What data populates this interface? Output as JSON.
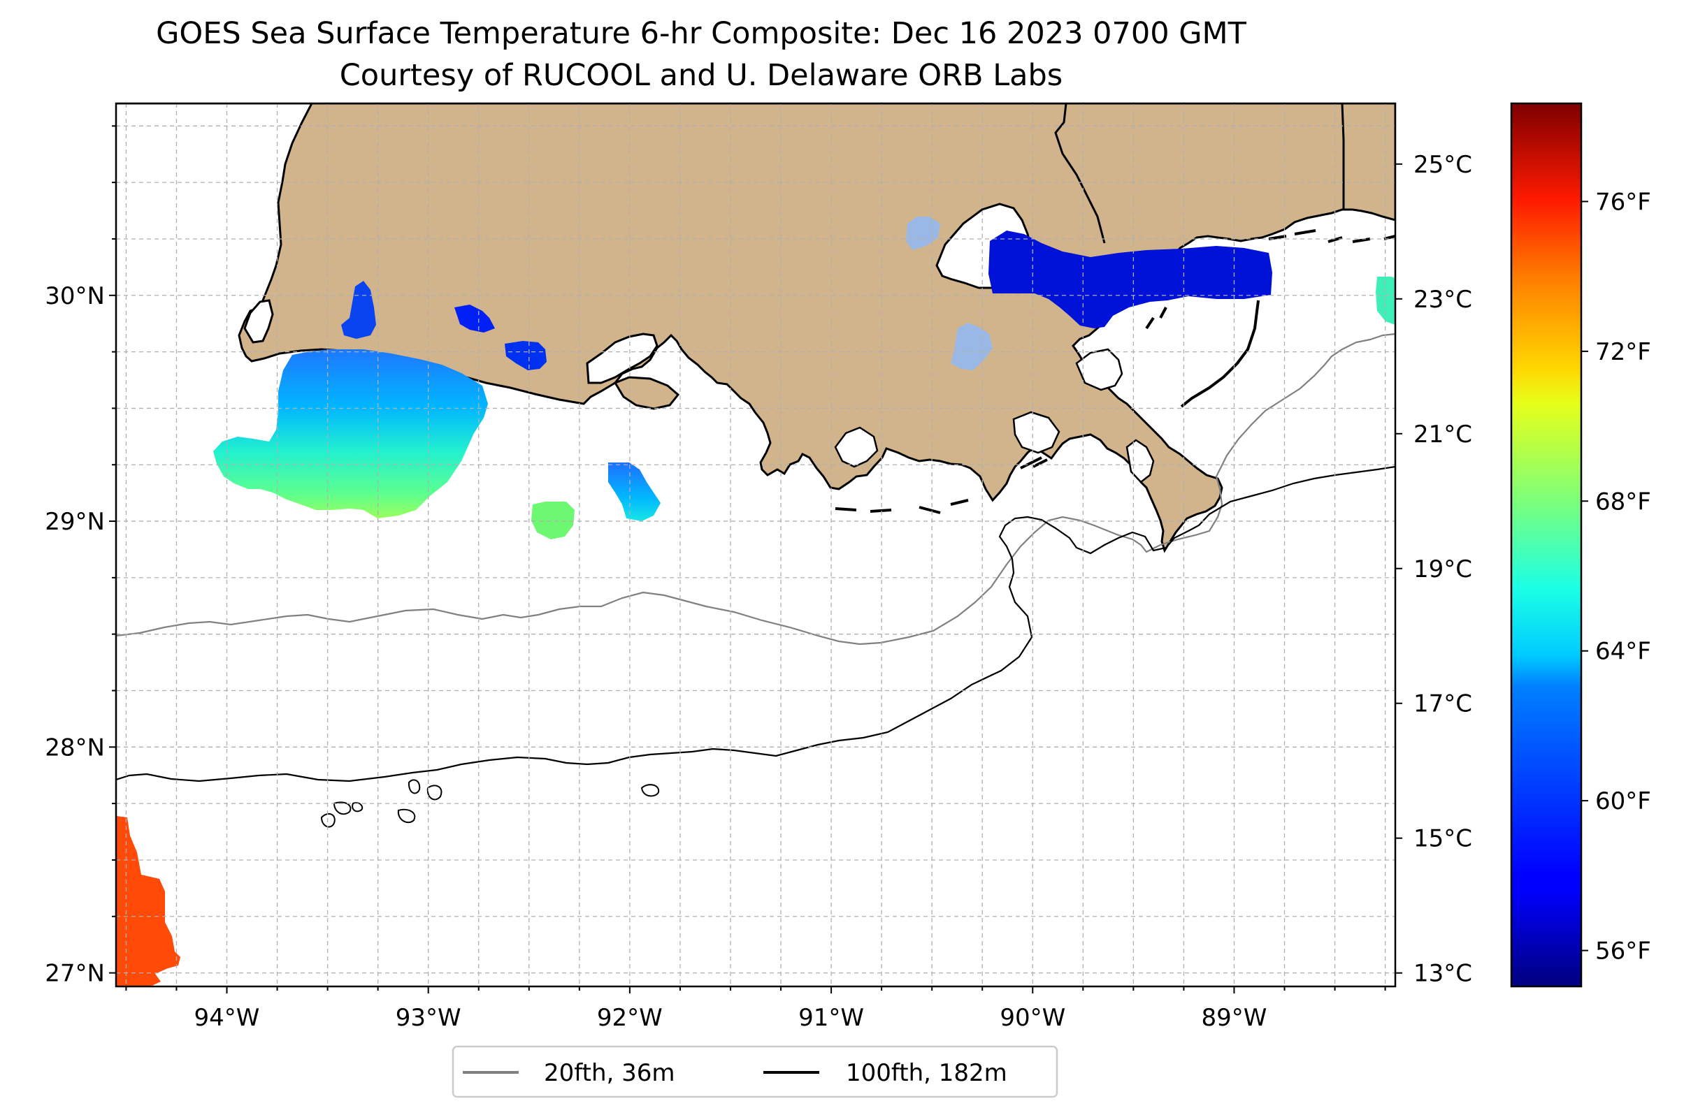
{
  "title": "GOES Sea Surface Temperature 6-hr Composite: Dec 16 2023 0700 GMT",
  "subtitle": "Courtesy of RUCOOL and U. Delaware ORB Labs",
  "map": {
    "lon_range": [
      -94.55,
      -88.2
    ],
    "lat_range": [
      26.94,
      30.85
    ],
    "lon_ticks": [
      {
        "value": -94,
        "label": "94°W"
      },
      {
        "value": -93,
        "label": "93°W"
      },
      {
        "value": -92,
        "label": "92°W"
      },
      {
        "value": -91,
        "label": "91°W"
      },
      {
        "value": -90,
        "label": "90°W"
      },
      {
        "value": -89,
        "label": "89°W"
      }
    ],
    "lat_ticks": [
      {
        "value": 27,
        "label": "27°N"
      },
      {
        "value": 28,
        "label": "28°N"
      },
      {
        "value": 29,
        "label": "29°N"
      },
      {
        "value": 30,
        "label": "30°N"
      }
    ],
    "grid": true,
    "land_color": "#d2b48c",
    "ocean_color": "#ffffff",
    "isobath_colors": {
      "20fth": "#808080",
      "100fth": "#000000"
    }
  },
  "legend": {
    "placement": "bottom-center",
    "entries": [
      {
        "label": "20fth, 36m",
        "color": "#808080"
      },
      {
        "label": "100fth, 182m",
        "color": "#000000"
      }
    ]
  },
  "colorbar": {
    "colormap": "jet",
    "celsius_range": [
      12.8,
      25.9
    ],
    "celsius_ticks": [
      {
        "value": 13,
        "label": "13°C"
      },
      {
        "value": 15,
        "label": "15°C"
      },
      {
        "value": 17,
        "label": "17°C"
      },
      {
        "value": 19,
        "label": "19°C"
      },
      {
        "value": 21,
        "label": "21°C"
      },
      {
        "value": 23,
        "label": "23°C"
      },
      {
        "value": 25,
        "label": "25°C"
      }
    ],
    "fahrenheit_ticks": [
      {
        "value": 56,
        "label": "56°F"
      },
      {
        "value": 60,
        "label": "60°F"
      },
      {
        "value": 64,
        "label": "64°F"
      },
      {
        "value": 68,
        "label": "68°F"
      },
      {
        "value": 72,
        "label": "72°F"
      },
      {
        "value": 76,
        "label": "76°F"
      }
    ]
  },
  "sst_patches": [
    {
      "region": "offshore-sabine",
      "temp_c_range": [
        16.3,
        19.2
      ]
    },
    {
      "region": "calcasieu-lake",
      "temp_c": 15.4
    },
    {
      "region": "white-lake",
      "temp_c": 14.6
    },
    {
      "region": "vermilion-bay",
      "temp_c": 14.8
    },
    {
      "region": "offshore-marsh-island",
      "temp_c": 18.9
    },
    {
      "region": "offshore-atchafalaya",
      "temp_c_range": [
        16.2,
        17.8
      ]
    },
    {
      "region": "lake-pontchartrain",
      "temp_c": 14.1
    },
    {
      "region": "lake-borgne-chandeleur",
      "temp_c": 14.1
    },
    {
      "region": "mississippi-coast",
      "temp_c": 18.4
    },
    {
      "region": "south-west-corner",
      "temp_c": 24.1
    }
  ]
}
